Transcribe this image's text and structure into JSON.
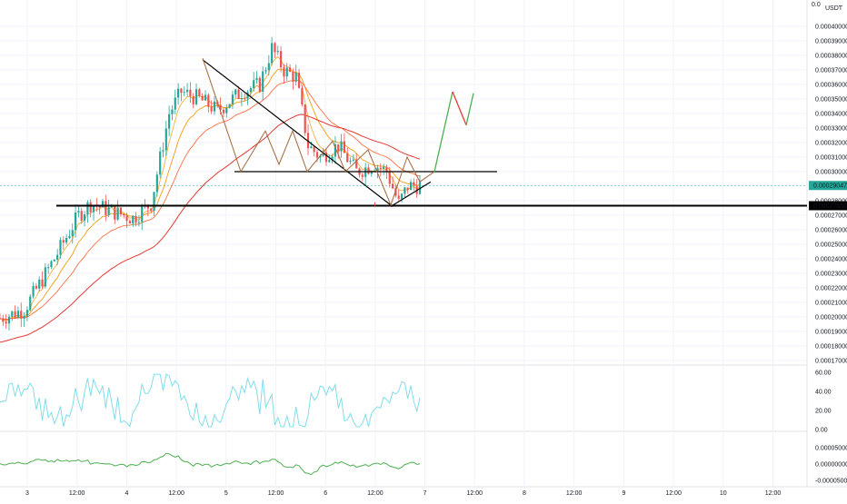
{
  "header": {
    "currency_label": "USDT",
    "top_tick_partial": "0.0"
  },
  "colors": {
    "up_candle": "#26a69a",
    "down_candle": "#ef5350",
    "ma_fast": "#f5b041",
    "ma_mid": "#f39c12",
    "ma_slow": "#ff7043",
    "ma_long": "#e53935",
    "trendline": "#000000",
    "projection_up": "#4caf50",
    "projection_down": "#e53935",
    "pattern_zigzag_red": "#e53935",
    "pattern_zigzag_green": "#4caf50",
    "rsi_line": "#80deea",
    "macd_line": "#4caf50",
    "grid": "#f0f3fa",
    "current_price_bg": "#26a69a",
    "support_price_bg": "#000000"
  },
  "price_axis": {
    "ticks": [
      "0.00040000",
      "0.00039000",
      "0.00038000",
      "0.00037000",
      "0.00036000",
      "0.00035000",
      "0.00034000",
      "0.00033000",
      "0.00032000",
      "0.00031000",
      "0.00030000",
      "0.00028000",
      "0.00027000",
      "0.00026000",
      "0.00025000",
      "0.00024000",
      "0.00023000",
      "0.00022000",
      "0.00021000",
      "0.00020000",
      "0.00019000",
      "0.00018000",
      "0.00017000"
    ],
    "current_price": "0.00029047",
    "support_price": "0.00027656"
  },
  "rsi_axis": {
    "ticks": [
      "60.00",
      "40.00",
      "20.00",
      "0.00"
    ]
  },
  "macd_axis": {
    "ticks": [
      "0.00005000",
      "0.00000000",
      "-0.00005000"
    ]
  },
  "time_axis": {
    "labels": [
      "3",
      "12:00",
      "4",
      "12:00",
      "5",
      "12:00",
      "6",
      "12:00",
      "7",
      "12:00",
      "8",
      "12:00",
      "9",
      "12:00",
      "10",
      "12:00"
    ]
  },
  "chart_data": {
    "type": "candlestick",
    "title": "",
    "currency": "USDT",
    "x_labels": [
      "3",
      "12:00",
      "4",
      "12:00",
      "5",
      "12:00",
      "6",
      "12:00",
      "7",
      "12:00",
      "8",
      "12:00",
      "9",
      "12:00",
      "10",
      "12:00"
    ],
    "ylim": [
      0.000165,
      0.00041
    ],
    "price_summary": {
      "start": 0.000199,
      "rally_high_day3": 0.000278,
      "breakout_high_day4": 0.000365,
      "peak": 0.000388,
      "pattern_low": 0.000276,
      "current": 0.00029047
    },
    "annotations": {
      "support_line": 0.00027656,
      "triangle_base": 0.0003,
      "projection_targets": [
        0.000355,
        0.000332,
        0.000354
      ]
    },
    "indicators": {
      "rsi_range": [
        0,
        60
      ],
      "macd_range": [
        -5e-05,
        5e-05
      ]
    }
  }
}
